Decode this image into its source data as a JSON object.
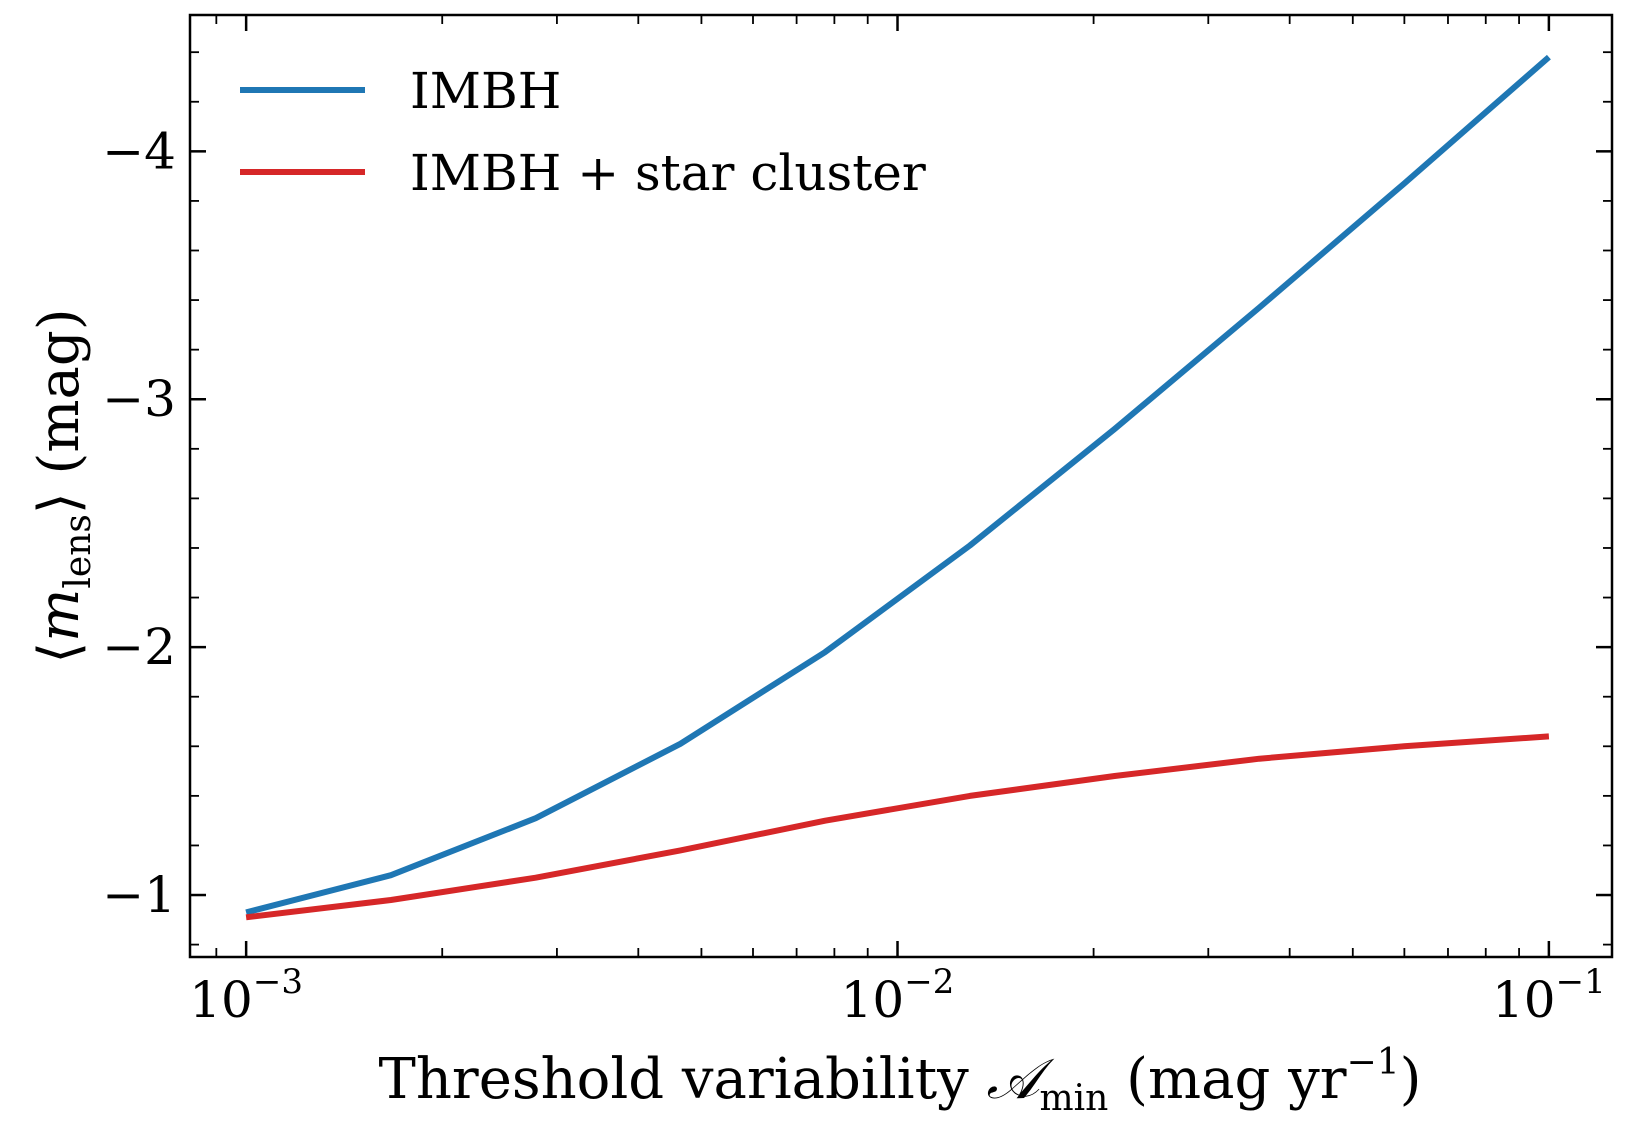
{
  "chart_data": {
    "type": "line",
    "xscale": "log",
    "xlim": [
      0.00082,
      0.125
    ],
    "ylim": [
      -0.75,
      -4.55
    ],
    "y_inverted": true,
    "x_ticks": [
      {
        "value": 0.001,
        "base": "10",
        "exp": "−3"
      },
      {
        "value": 0.01,
        "base": "10",
        "exp": "−2"
      },
      {
        "value": 0.1,
        "base": "10",
        "exp": "−1"
      }
    ],
    "y_ticks": [
      {
        "value": -1,
        "label": "−1"
      },
      {
        "value": -2,
        "label": "−2"
      },
      {
        "value": -3,
        "label": "−3"
      },
      {
        "value": -4,
        "label": "−4"
      }
    ],
    "xlabel": {
      "text": "Threshold variability ",
      "symbol": "𝒜",
      "sub": "min",
      "units_pre": " (mag yr",
      "units_sup": "−1",
      "units_post": ")"
    },
    "ylabel": {
      "open": "⟨",
      "symbol": "m",
      "sub": "lens",
      "close": "⟩",
      "units": " (mag)"
    },
    "legend_position": "top-left",
    "series": [
      {
        "name": "IMBH",
        "color": "#1f77b4",
        "x": [
          0.001,
          0.001668,
          0.002783,
          0.004642,
          0.007743,
          0.012915,
          0.021544,
          0.035938,
          0.059948,
          0.1
        ],
        "y": [
          -0.93,
          -1.08,
          -1.31,
          -1.61,
          -1.98,
          -2.41,
          -2.88,
          -3.37,
          -3.87,
          -4.38
        ]
      },
      {
        "name": "IMBH + star cluster",
        "color": "#d62728",
        "x": [
          0.001,
          0.001668,
          0.002783,
          0.004642,
          0.007743,
          0.012915,
          0.021544,
          0.035938,
          0.059948,
          0.1
        ],
        "y": [
          -0.91,
          -0.98,
          -1.07,
          -1.18,
          -1.3,
          -1.4,
          -1.48,
          -1.55,
          -1.6,
          -1.64
        ]
      }
    ]
  }
}
